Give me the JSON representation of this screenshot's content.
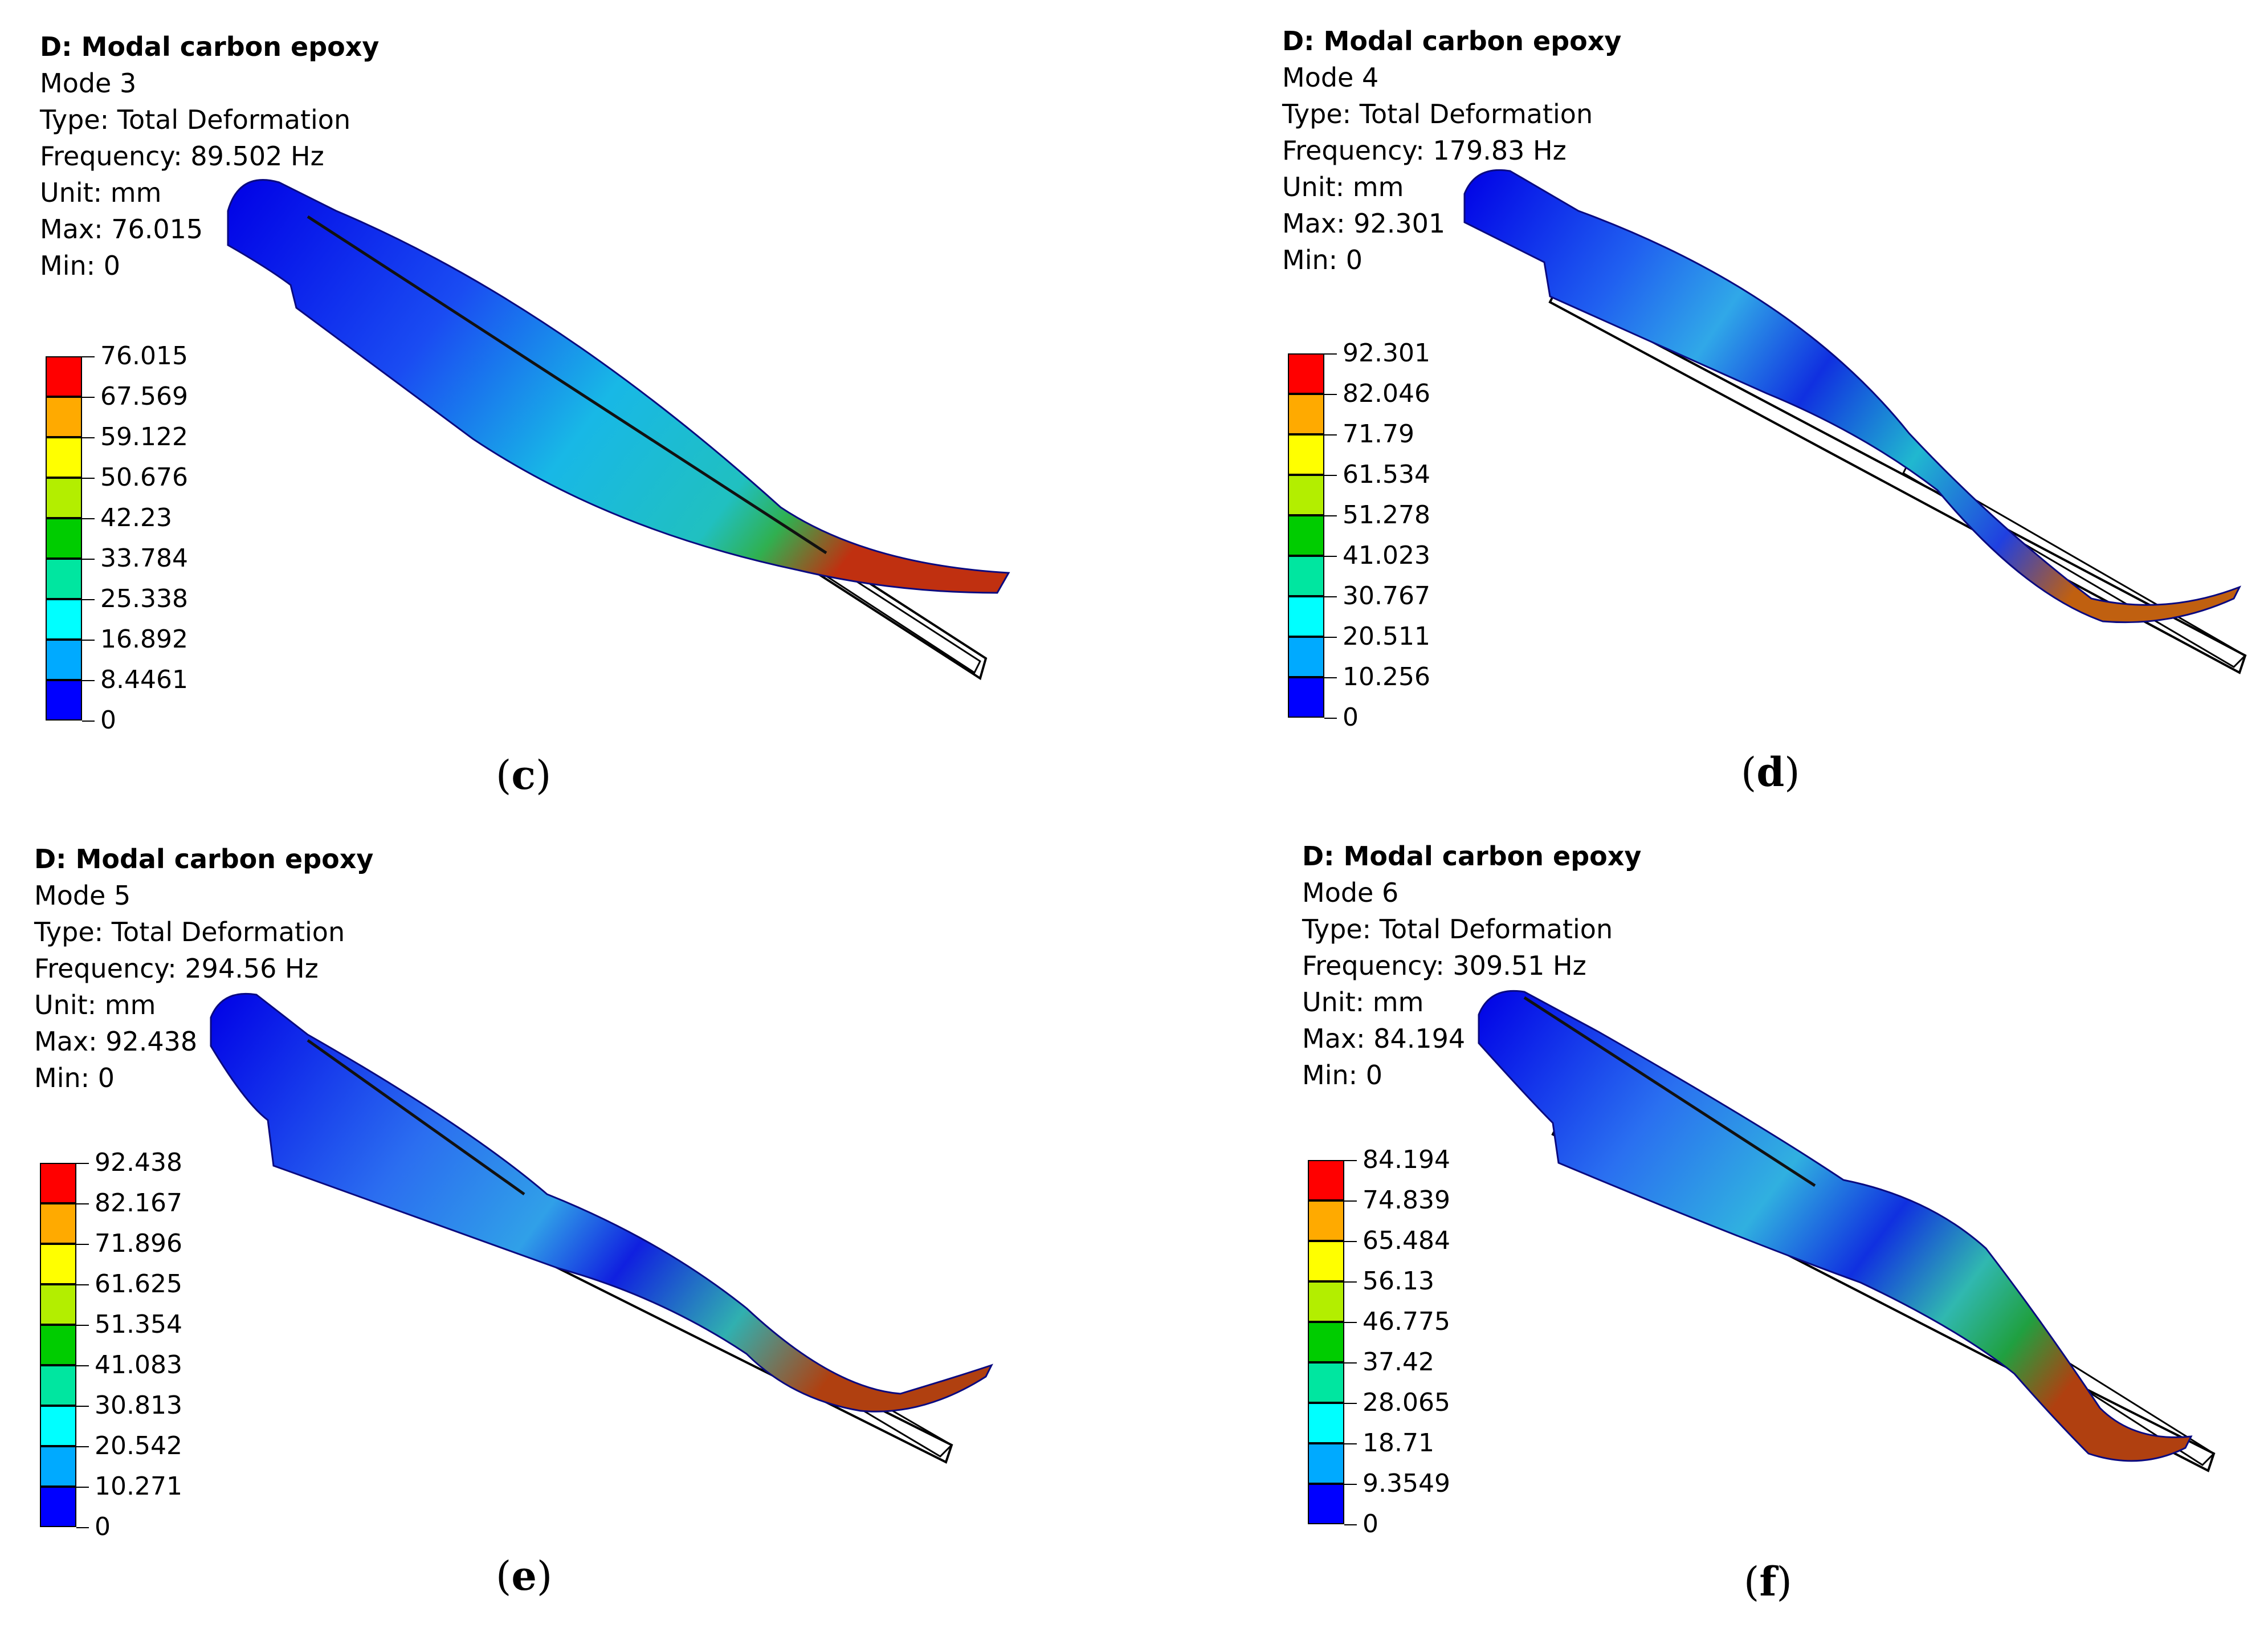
{
  "legend_colors": [
    "#ff0000",
    "#ffaa00",
    "#ffff00",
    "#b3ee00",
    "#00cc00",
    "#00e6a0",
    "#00ffff",
    "#00aaff",
    "#0000ff"
  ],
  "panels": [
    {
      "title": "D: Modal carbon epoxy",
      "mode": "Mode 3",
      "type": "Type: Total Deformation",
      "frequency": "Frequency: 89.502 Hz",
      "unit": "Unit: mm",
      "max": "Max: 76.015",
      "min": "Min: 0",
      "legend": [
        "76.015",
        "67.569",
        "59.122",
        "50.676",
        "42.23",
        "33.784",
        "25.338",
        "16.892",
        "8.4461",
        "0"
      ],
      "caption_letter": "c",
      "icons": {
        "blade": "deformed-blade-mode3",
        "outline": "undeformed-outline"
      }
    },
    {
      "title": "D: Modal carbon epoxy",
      "mode": "Mode 4",
      "type": "Type: Total Deformation",
      "frequency": "Frequency: 179.83 Hz",
      "unit": "Unit: mm",
      "max": "Max: 92.301",
      "min": "Min: 0",
      "legend": [
        "92.301",
        "82.046",
        "71.79",
        "61.534",
        "51.278",
        "41.023",
        "30.767",
        "20.511",
        "10.256",
        "0"
      ],
      "caption_letter": "d",
      "icons": {
        "blade": "deformed-blade-mode4",
        "outline": "undeformed-outline"
      }
    },
    {
      "title": "D: Modal carbon epoxy",
      "mode": "Mode 5",
      "type": "Type: Total Deformation",
      "frequency": "Frequency: 294.56 Hz",
      "unit": "Unit: mm",
      "max": "Max: 92.438",
      "min": "Min: 0",
      "legend": [
        "92.438",
        "82.167",
        "71.896",
        "61.625",
        "51.354",
        "41.083",
        "30.813",
        "20.542",
        "10.271",
        "0"
      ],
      "caption_letter": "e",
      "icons": {
        "blade": "deformed-blade-mode5",
        "outline": "undeformed-outline"
      }
    },
    {
      "title": "D: Modal carbon epoxy",
      "mode": "Mode 6",
      "type": "Type: Total Deformation",
      "frequency": "Frequency: 309.51 Hz",
      "unit": "Unit: mm",
      "max": "Max: 84.194",
      "min": "Min: 0",
      "legend": [
        "84.194",
        "74.839",
        "65.484",
        "56.13",
        "46.775",
        "37.42",
        "28.065",
        "18.71",
        "9.3549",
        "0"
      ],
      "caption_letter": "f",
      "icons": {
        "blade": "deformed-blade-mode6",
        "outline": "undeformed-outline"
      }
    }
  ]
}
